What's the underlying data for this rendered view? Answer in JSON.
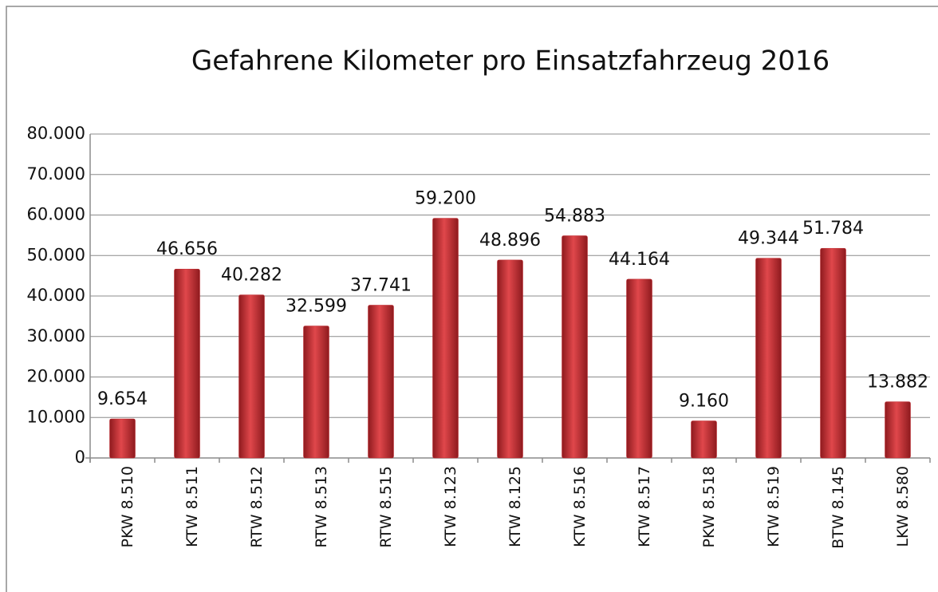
{
  "chart_data": {
    "type": "bar",
    "title": "Gefahrene Kilometer pro Einsatzfahrzeug 2016",
    "categories": [
      "PKW 8.510",
      "KTW 8.511",
      "RTW 8.512",
      "RTW 8.513",
      "RTW 8.515",
      "KTW 8.123",
      "KTW 8.125",
      "KTW 8.516",
      "KTW 8.517",
      "PKW 8.518",
      "KTW 8.519",
      "BTW 8.145",
      "LKW 8.580"
    ],
    "values": [
      9654,
      46656,
      40282,
      32599,
      37741,
      59200,
      48896,
      54883,
      44164,
      9160,
      49344,
      51784,
      13882
    ],
    "value_labels": [
      "9.654",
      "46.656",
      "40.282",
      "32.599",
      "37.741",
      "59.200",
      "48.896",
      "54.883",
      "44.164",
      "9.160",
      "49.344",
      "51.784",
      "13.882"
    ],
    "color": "#c0272d",
    "ylim": [
      0,
      80000
    ],
    "yticks": [
      0,
      {
        "value": 10000,
        "label": "10.000"
      },
      {
        "value": 20000,
        "label": "20.000"
      },
      {
        "value": 30000,
        "label": "30.000"
      },
      {
        "value": 40000,
        "label": "40.000"
      },
      {
        "value": 50000,
        "label": "50.000"
      },
      {
        "value": 60000,
        "label": "60.000"
      },
      {
        "value": 70000,
        "label": "70.000"
      },
      {
        "value": 80000,
        "label": "80.000"
      }
    ],
    "grid": true
  }
}
